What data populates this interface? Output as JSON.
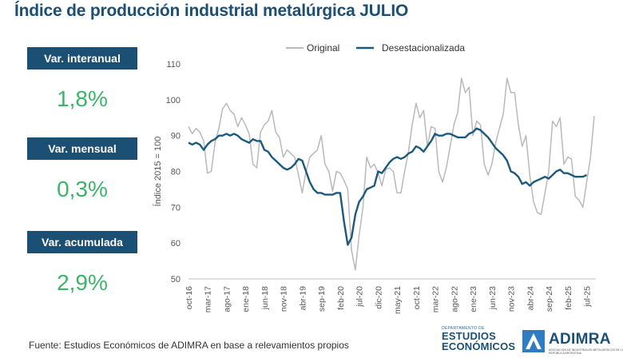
{
  "header": {
    "title": "Índice de producción industrial metalúrgica JULIO"
  },
  "kpis": [
    {
      "label": "Var. interanual",
      "value": "1,8%"
    },
    {
      "label": "Var. mensual",
      "value": "0,3%"
    },
    {
      "label": "Var. acumulada",
      "value": "2,9%"
    }
  ],
  "footer": {
    "source": "Fuente: Estudios Económicos de ADIMRA en base a relevamientos propios",
    "dept_small": "DEPARTAMENTO DE",
    "dept_line1": "ESTUDIOS",
    "dept_line2": "ECONÓMICOS",
    "brand": "ADIMRA",
    "brand_sub": "ASOCIACIÓN DE INDUSTRIALES METALÚRGICOS DE LA REPÚBLICA ARGENTINA"
  },
  "colors": {
    "title": "#1c4f74",
    "kpi_value": "#3cb56a",
    "original": "#b9b9b9",
    "seasonal": "#1b5a7e"
  },
  "chart_data": {
    "type": "line",
    "title": "",
    "xlabel": "",
    "ylabel": "Índice 2015 = 100",
    "ylim": [
      50,
      110
    ],
    "yticks": [
      50,
      60,
      70,
      80,
      90,
      100,
      110
    ],
    "xtick_labels": [
      "oct-16",
      "mar-17",
      "ago-17",
      "ene-18",
      "jun-18",
      "nov-18",
      "abr-19",
      "sep-19",
      "feb-20",
      "jul-20",
      "dic-20",
      "may-21",
      "oct-21",
      "mar-22",
      "ago-22",
      "ene-23",
      "jun-23",
      "nov-23",
      "abr-24",
      "sep-24",
      "feb-25",
      "jul-25"
    ],
    "legend": {
      "position": "top-right"
    },
    "series": [
      {
        "name": "Original",
        "values": [
          92.5,
          90.5,
          92.0,
          91.0,
          88.5,
          79.5,
          80.0,
          88.0,
          92.0,
          97.5,
          99.0,
          97.0,
          96.0,
          92.5,
          95.0,
          93.0,
          90.5,
          82.0,
          81.0,
          91.0,
          93.0,
          94.0,
          97.0,
          91.0,
          89.5,
          84.0,
          86.0,
          85.0,
          84.0,
          79.0,
          74.0,
          80.0,
          84.0,
          85.0,
          86.0,
          90.0,
          82.0,
          80.0,
          74.5,
          80.0,
          79.5,
          77.5,
          75.0,
          58.0,
          52.5,
          62.0,
          70.0,
          84.0,
          81.0,
          82.0,
          79.5,
          76.0,
          80.5,
          81.0,
          80.0,
          74.0,
          74.0,
          80.0,
          85.5,
          93.0,
          99.0,
          95.0,
          97.0,
          87.0,
          92.5,
          92.0,
          80.0,
          77.0,
          81.0,
          87.0,
          93.0,
          96.5,
          106.0,
          102.0,
          103.5,
          90.0,
          94.0,
          93.0,
          82.0,
          79.0,
          82.0,
          88.0,
          92.0,
          96.0,
          106.0,
          102.0,
          102.0,
          93.0,
          87.0,
          90.0,
          79.0,
          71.5,
          68.5,
          68.0,
          74.0,
          80.0,
          94.0,
          92.5,
          95.0,
          82.0,
          84.0,
          83.5,
          73.0,
          72.0,
          70.0,
          77.0,
          84.0,
          95.5
        ]
      },
      {
        "name": "Desestacionalizada",
        "values": [
          88.0,
          87.5,
          88.0,
          87.5,
          86.0,
          87.5,
          88.5,
          89.0,
          90.0,
          90.0,
          90.5,
          90.0,
          90.5,
          90.0,
          89.0,
          88.5,
          88.0,
          89.0,
          88.5,
          88.5,
          86.0,
          85.5,
          84.0,
          83.0,
          82.0,
          81.0,
          80.5,
          81.0,
          82.0,
          83.5,
          83.0,
          80.0,
          77.0,
          75.0,
          74.0,
          74.0,
          73.5,
          73.5,
          73.5,
          74.0,
          74.0,
          66.0,
          59.5,
          61.5,
          68.0,
          71.5,
          73.0,
          75.0,
          75.5,
          76.0,
          80.0,
          79.5,
          81.0,
          82.5,
          83.5,
          84.0,
          83.5,
          84.0,
          85.0,
          85.5,
          87.0,
          86.5,
          85.5,
          87.0,
          88.5,
          90.5,
          90.0,
          90.0,
          90.5,
          90.5,
          90.0,
          89.5,
          89.5,
          89.5,
          90.5,
          91.0,
          92.0,
          91.5,
          90.5,
          89.5,
          88.0,
          86.5,
          85.5,
          84.5,
          83.0,
          80.0,
          79.5,
          78.5,
          76.5,
          77.0,
          76.0,
          77.0,
          77.5,
          78.0,
          78.5,
          78.0,
          79.0,
          80.0,
          80.5,
          79.5,
          79.5,
          79.0,
          78.5,
          78.5,
          78.5,
          79.0
        ]
      }
    ]
  }
}
